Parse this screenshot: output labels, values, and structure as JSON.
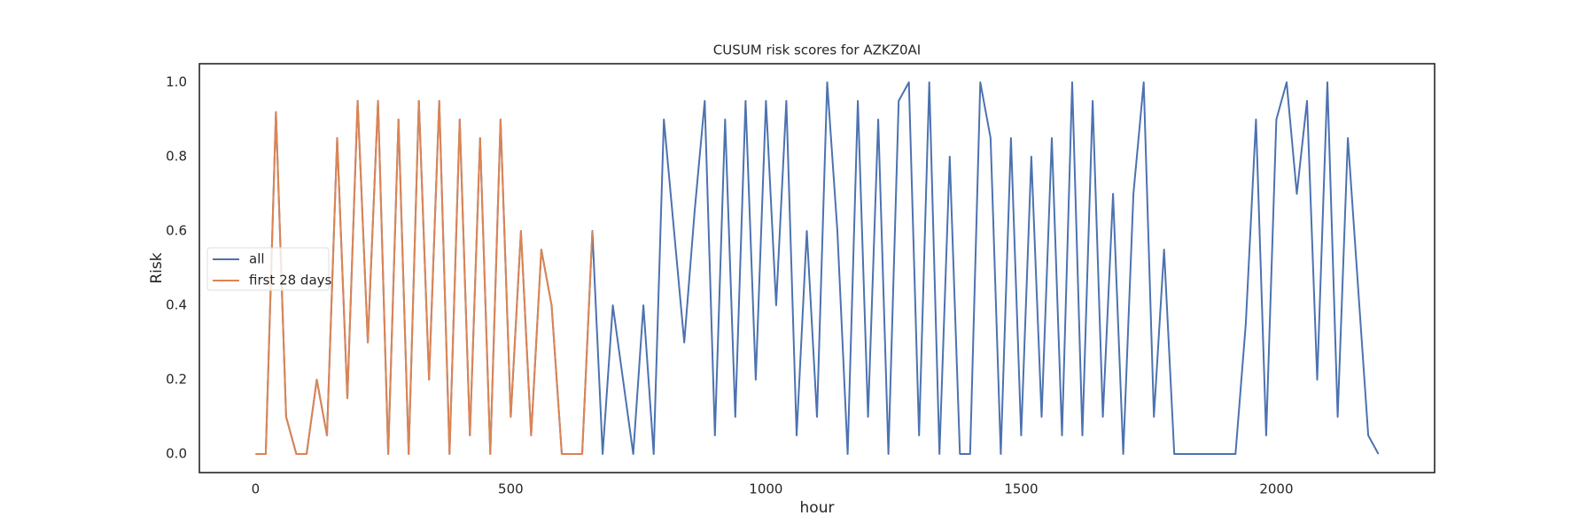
{
  "chart_data": {
    "type": "line",
    "title": "CUSUM risk scores for AZKZ0AI",
    "xlabel": "hour",
    "ylabel": "Risk",
    "x": [
      0,
      20,
      40,
      60,
      80,
      100,
      120,
      140,
      160,
      180,
      200,
      220,
      240,
      260,
      280,
      300,
      320,
      340,
      360,
      380,
      400,
      420,
      440,
      460,
      480,
      500,
      520,
      540,
      560,
      580,
      600,
      620,
      640,
      660,
      680,
      700,
      720,
      740,
      760,
      780,
      800,
      820,
      840,
      860,
      880,
      900,
      920,
      940,
      960,
      980,
      1000,
      1020,
      1040,
      1060,
      1080,
      1100,
      1120,
      1140,
      1160,
      1180,
      1200,
      1220,
      1240,
      1260,
      1280,
      1300,
      1320,
      1340,
      1360,
      1380,
      1400,
      1420,
      1440,
      1460,
      1480,
      1500,
      1520,
      1540,
      1560,
      1580,
      1600,
      1620,
      1640,
      1660,
      1680,
      1700,
      1720,
      1740,
      1760,
      1780,
      1800,
      1820,
      1840,
      1860,
      1880,
      1900,
      1920,
      1940,
      1960,
      1980,
      2000,
      2020,
      2040,
      2060,
      2080,
      2100,
      2120,
      2140,
      2160,
      2180,
      2200
    ],
    "series": [
      {
        "name": "all",
        "color": "#4c72b0",
        "values": [
          0,
          0,
          0.92,
          0.1,
          0,
          0,
          0.2,
          0.05,
          0.85,
          0.15,
          0.95,
          0.3,
          0.95,
          0,
          0.9,
          0,
          0.95,
          0.2,
          0.95,
          0,
          0.9,
          0.05,
          0.85,
          0,
          0.9,
          0.1,
          0.6,
          0.05,
          0.55,
          0.4,
          0,
          0,
          0,
          0.6,
          0,
          0.4,
          0.2,
          0,
          0.4,
          0,
          0.9,
          0.6,
          0.3,
          0.65,
          0.95,
          0.05,
          0.9,
          0.1,
          0.95,
          0.2,
          0.95,
          0.4,
          0.95,
          0.05,
          0.6,
          0.1,
          1.0,
          0.6,
          0,
          0.95,
          0.1,
          0.9,
          0,
          0.95,
          1.0,
          0.05,
          1.0,
          0,
          0.8,
          0,
          0,
          1.0,
          0.85,
          0,
          0.85,
          0.05,
          0.8,
          0.1,
          0.85,
          0.05,
          1.0,
          0.05,
          0.95,
          0.1,
          0.7,
          0,
          0.7,
          1.0,
          0.1,
          0.55,
          0,
          0,
          0,
          0,
          0,
          0,
          0,
          0.35,
          0.9,
          0.05,
          0.9,
          1.0,
          0.7,
          0.95,
          0.2,
          1.0,
          0.1,
          0.85,
          0.45,
          0.05,
          0
        ]
      },
      {
        "name": "first 28 days",
        "color": "#dd8452",
        "values": [
          0,
          0,
          0.92,
          0.1,
          0,
          0,
          0.2,
          0.05,
          0.85,
          0.15,
          0.95,
          0.3,
          0.95,
          0,
          0.9,
          0,
          0.95,
          0.2,
          0.95,
          0,
          0.9,
          0.05,
          0.85,
          0,
          0.9,
          0.1,
          0.6,
          0.05,
          0.55,
          0.4,
          0,
          0,
          0,
          0.6,
          null,
          null,
          null,
          null,
          null,
          null,
          null,
          null,
          null,
          null,
          null,
          null,
          null,
          null,
          null,
          null,
          null,
          null,
          null,
          null,
          null,
          null,
          null,
          null,
          null,
          null,
          null,
          null,
          null,
          null,
          null,
          null,
          null,
          null,
          null,
          null,
          null,
          null,
          null,
          null,
          null,
          null,
          null,
          null,
          null,
          null,
          null,
          null,
          null,
          null,
          null,
          null,
          null,
          null,
          null,
          null,
          null,
          null,
          null,
          null,
          null,
          null,
          null,
          null,
          null,
          null,
          null,
          null,
          null,
          null,
          null,
          null,
          null,
          null,
          null,
          null,
          null
        ]
      }
    ],
    "xlim": [
      -110,
      2310
    ],
    "xticks": [
      0,
      500,
      1000,
      1500,
      2000
    ],
    "ylim": [
      -0.05,
      1.05
    ],
    "yticks": [
      {
        "value": 0,
        "label": "0.0"
      },
      {
        "value": 0.2,
        "label": "0.2"
      },
      {
        "value": 0.4,
        "label": "0.4"
      },
      {
        "value": 0.6,
        "label": "0.6"
      },
      {
        "value": 0.8,
        "label": "0.8"
      },
      {
        "value": 1,
        "label": "1.0"
      }
    ],
    "legend": "center left"
  }
}
